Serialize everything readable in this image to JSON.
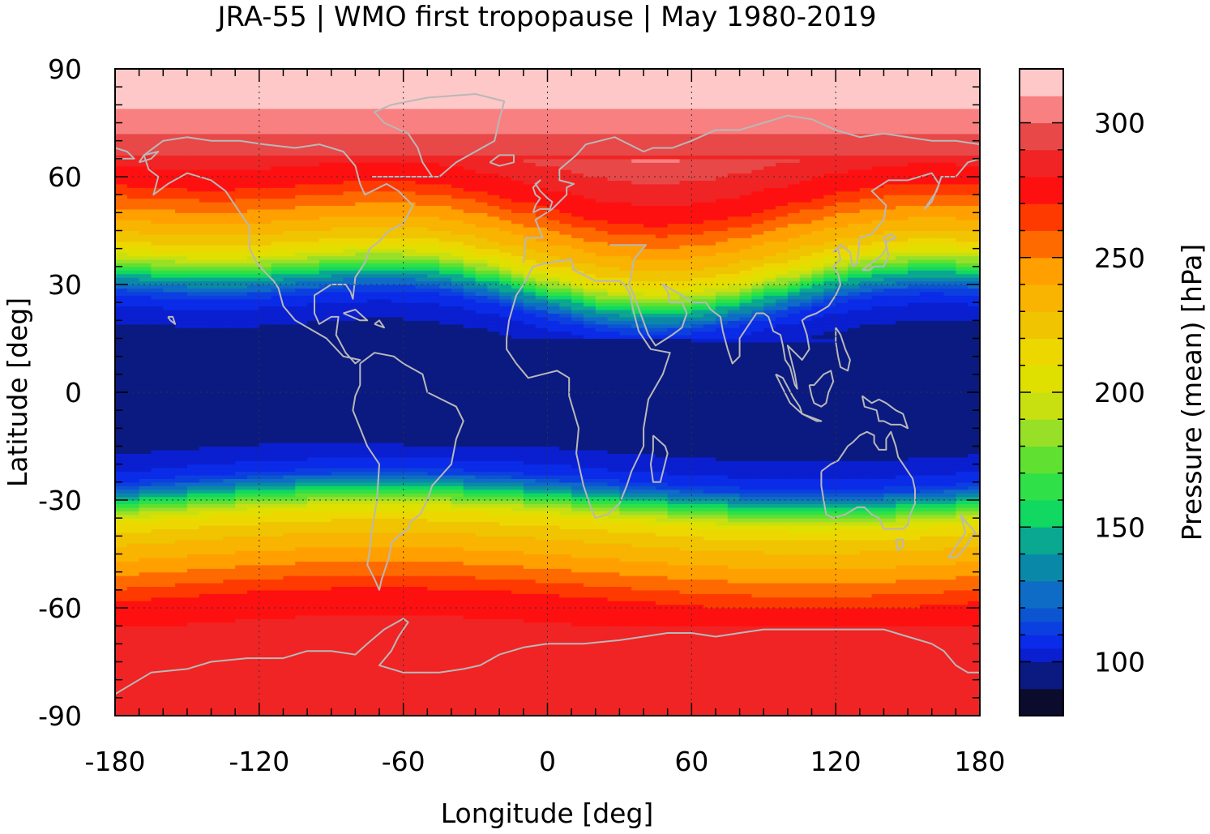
{
  "chart_data": {
    "type": "heatmap",
    "title": "JRA-55 | WMO first tropopause | May 1980-2019",
    "xlabel": "Longitude [deg]",
    "ylabel": "Latitude [deg]",
    "xlim": [
      -180,
      180
    ],
    "ylim": [
      -90,
      90
    ],
    "x_ticks": [
      -180,
      -120,
      -60,
      0,
      60,
      120,
      180
    ],
    "x_tick_labels": [
      "-180",
      "-120",
      "-60",
      "0",
      "60",
      "120",
      "180"
    ],
    "y_ticks": [
      90,
      60,
      30,
      0,
      -30,
      -60,
      -90
    ],
    "y_tick_labels": [
      "90",
      "60",
      "30",
      "0",
      "-30",
      "-60",
      "-90"
    ],
    "grid": true,
    "colorbar": {
      "label": "Pressure (mean) [hPa]",
      "range": [
        80,
        320
      ],
      "ticks": [
        100,
        150,
        200,
        250,
        300
      ],
      "tick_labels": [
        "100",
        "150",
        "200",
        "250",
        "300"
      ],
      "levels": [
        {
          "min": 80,
          "max": 90,
          "color": "#0b0b2e"
        },
        {
          "min": 90,
          "max": 100,
          "color": "#0b1a80"
        },
        {
          "min": 100,
          "max": 105,
          "color": "#0a1fd0"
        },
        {
          "min": 105,
          "max": 110,
          "color": "#0a2be8"
        },
        {
          "min": 110,
          "max": 115,
          "color": "#0c3fe0"
        },
        {
          "min": 115,
          "max": 120,
          "color": "#0c55d0"
        },
        {
          "min": 120,
          "max": 130,
          "color": "#0e6cc6"
        },
        {
          "min": 130,
          "max": 140,
          "color": "#0a88a8"
        },
        {
          "min": 140,
          "max": 150,
          "color": "#0aa890"
        },
        {
          "min": 150,
          "max": 160,
          "color": "#10d860"
        },
        {
          "min": 160,
          "max": 170,
          "color": "#30e048"
        },
        {
          "min": 170,
          "max": 180,
          "color": "#60e030"
        },
        {
          "min": 180,
          "max": 190,
          "color": "#98e028"
        },
        {
          "min": 190,
          "max": 200,
          "color": "#c8e010"
        },
        {
          "min": 200,
          "max": 210,
          "color": "#e0e000"
        },
        {
          "min": 210,
          "max": 220,
          "color": "#ecd800"
        },
        {
          "min": 220,
          "max": 230,
          "color": "#f0c400"
        },
        {
          "min": 230,
          "max": 240,
          "color": "#f8b400"
        },
        {
          "min": 240,
          "max": 250,
          "color": "#ffa000"
        },
        {
          "min": 250,
          "max": 260,
          "color": "#ff6a00"
        },
        {
          "min": 260,
          "max": 270,
          "color": "#ff3a00"
        },
        {
          "min": 270,
          "max": 280,
          "color": "#ff1010"
        },
        {
          "min": 280,
          "max": 290,
          "color": "#f02424"
        },
        {
          "min": 290,
          "max": 300,
          "color": "#e84848"
        },
        {
          "min": 300,
          "max": 310,
          "color": "#f88080"
        },
        {
          "min": 310,
          "max": 320,
          "color": "#ffc8c8"
        }
      ]
    },
    "zonal_mean_profile": {
      "lat": [
        -90,
        -75,
        -65,
        -58,
        -52,
        -46,
        -40,
        -35,
        -31,
        -28,
        -25,
        -20,
        -15,
        -10,
        0,
        10,
        15,
        20,
        25,
        30,
        33,
        36,
        40,
        45,
        50,
        55,
        60,
        65,
        70,
        75,
        80,
        85,
        90
      ],
      "pressure": [
        282,
        282,
        280,
        272,
        255,
        240,
        226,
        208,
        170,
        140,
        112,
        103,
        99,
        96,
        95,
        96,
        99,
        103,
        112,
        150,
        180,
        205,
        225,
        240,
        255,
        272,
        280,
        288,
        296,
        305,
        312,
        316,
        318
      ]
    },
    "overlay": "coastlines"
  }
}
